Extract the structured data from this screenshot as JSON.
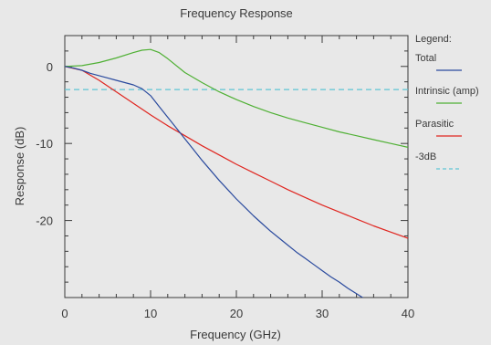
{
  "chart_data": {
    "type": "line",
    "title": "Frequency Response",
    "xlabel": "Frequency (GHz)",
    "ylabel": "Response (dB)",
    "xlim": [
      0,
      40
    ],
    "ylim": [
      -30,
      4
    ],
    "x_ticks": [
      0,
      10,
      20,
      30,
      40
    ],
    "y_ticks": [
      0,
      -10,
      -20
    ],
    "grid": false,
    "legend_title": "Legend:",
    "legend_position": "right",
    "series": [
      {
        "name": "Total",
        "color": "#2a4a9e",
        "dash": "solid",
        "x": [
          0,
          1,
          2,
          3,
          4,
          5,
          6,
          7,
          8,
          9,
          10,
          11,
          12,
          13,
          14,
          15,
          16,
          17,
          18,
          19,
          20,
          21,
          22,
          23,
          24,
          25,
          26,
          27,
          28,
          29,
          30,
          31,
          32,
          33,
          34,
          35
        ],
        "y": [
          0,
          -0.2,
          -0.5,
          -0.9,
          -1.2,
          -1.5,
          -1.8,
          -2.1,
          -2.4,
          -2.9,
          -3.8,
          -5.2,
          -6.6,
          -8.0,
          -9.4,
          -10.8,
          -12.2,
          -13.5,
          -14.8,
          -16.0,
          -17.2,
          -18.3,
          -19.4,
          -20.4,
          -21.4,
          -22.3,
          -23.2,
          -24.1,
          -24.9,
          -25.7,
          -26.5,
          -27.3,
          -28.0,
          -28.8,
          -29.5,
          -30.2
        ]
      },
      {
        "name": "Intrinsic (amp)",
        "color": "#4fb034",
        "dash": "solid",
        "x": [
          0,
          2,
          4,
          6,
          8,
          9,
          10,
          11,
          12,
          14,
          16,
          18,
          20,
          22,
          24,
          26,
          28,
          30,
          32,
          34,
          36,
          38,
          40
        ],
        "y": [
          0,
          0.1,
          0.5,
          1.1,
          1.8,
          2.1,
          2.2,
          1.8,
          1.0,
          -0.8,
          -2.1,
          -3.3,
          -4.3,
          -5.2,
          -6.0,
          -6.7,
          -7.3,
          -7.9,
          -8.5,
          -9.0,
          -9.5,
          -10.0,
          -10.5
        ]
      },
      {
        "name": "Parasitic",
        "color": "#e0251f",
        "dash": "solid",
        "x": [
          0,
          2,
          4,
          6,
          8,
          10,
          12,
          14,
          16,
          18,
          20,
          22,
          24,
          26,
          28,
          30,
          32,
          34,
          36,
          38,
          40
        ],
        "y": [
          0,
          -0.5,
          -1.8,
          -3.3,
          -4.8,
          -6.3,
          -7.7,
          -9.0,
          -10.3,
          -11.5,
          -12.7,
          -13.8,
          -14.9,
          -16.0,
          -17.0,
          -18.0,
          -18.9,
          -19.8,
          -20.7,
          -21.5,
          -22.3
        ]
      },
      {
        "name": "-3dB",
        "color": "#5ec4d4",
        "dash": "dashed",
        "x": [
          0,
          40
        ],
        "y": [
          -3,
          -3
        ]
      }
    ]
  }
}
